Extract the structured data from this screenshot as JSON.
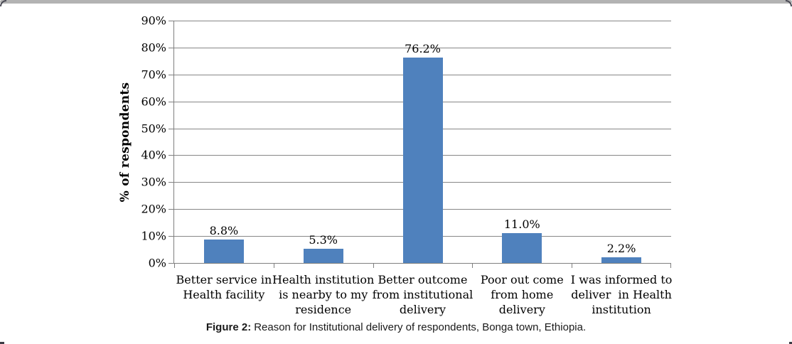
{
  "figure_caption": {
    "prefix": "Figure 2:",
    "text": "Reason for Institutional delivery of respondents, Bonga town, Ethiopia."
  },
  "chart_data": {
    "type": "bar",
    "title": "",
    "xlabel": "",
    "ylabel": "% of respondents",
    "ylim": [
      0,
      90
    ],
    "ytick_step": 10,
    "yticks": [
      0,
      10,
      20,
      30,
      40,
      50,
      60,
      70,
      80,
      90
    ],
    "ytick_labels": [
      "0%",
      "10%",
      "20%",
      "30%",
      "40%",
      "50%",
      "60%",
      "70%",
      "80%",
      "90%"
    ],
    "grid": true,
    "legend_position": "none",
    "categories": [
      "Better service in\nHealth facility",
      "Health institution\nis nearby to my\nresidence",
      "Better outcome\nfrom institutional\ndelivery",
      "Poor out come\nfrom home\ndelivery",
      "I was informed to\ndeliver  in Health\ninstitution"
    ],
    "values": [
      8.8,
      5.3,
      76.2,
      11.0,
      2.2
    ],
    "data_labels": [
      "8.8%",
      "5.3%",
      "76.2%",
      "11.0%",
      "2.2%"
    ],
    "colors": {
      "bar": "#4F81BD",
      "gridline": "#878787",
      "axis": "#7f7f7f",
      "text": "#000000",
      "top_border": "#b3b3b3"
    }
  }
}
